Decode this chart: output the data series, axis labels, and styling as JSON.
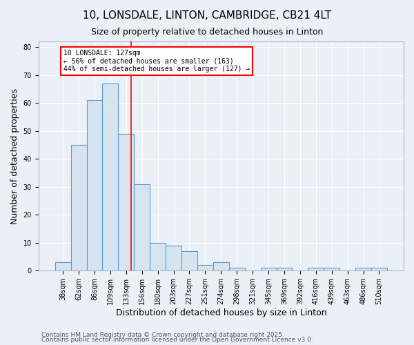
{
  "title1": "10, LONSDALE, LINTON, CAMBRIDGE, CB21 4LT",
  "title2": "Size of property relative to detached houses in Linton",
  "xlabel": "Distribution of detached houses by size in Linton",
  "ylabel": "Number of detached properties",
  "categories": [
    "38sqm",
    "62sqm",
    "86sqm",
    "109sqm",
    "133sqm",
    "156sqm",
    "180sqm",
    "203sqm",
    "227sqm",
    "251sqm",
    "274sqm",
    "298sqm",
    "321sqm",
    "345sqm",
    "369sqm",
    "392sqm",
    "416sqm",
    "439sqm",
    "463sqm",
    "486sqm",
    "510sqm"
  ],
  "values": [
    3,
    45,
    61,
    67,
    49,
    31,
    10,
    9,
    7,
    2,
    3,
    1,
    0,
    1,
    1,
    0,
    1,
    1,
    0,
    1,
    1
  ],
  "bar_color": "#d6e4f0",
  "bar_edge_color": "#5b9bd5",
  "red_line_x": 4.3,
  "annotation_text": "10 LONSDALE: 127sqm\n← 56% of detached houses are smaller (163)\n44% of semi-detached houses are larger (127) →",
  "annotation_box_color": "white",
  "annotation_box_edge_color": "red",
  "footer1": "Contains HM Land Registry data © Crown copyright and database right 2025.",
  "footer2": "Contains public sector information licensed under the Open Government Licence v3.0.",
  "ylim": [
    0,
    82
  ],
  "yticks": [
    0,
    10,
    20,
    30,
    40,
    50,
    60,
    70,
    80
  ],
  "background_color": "#eaf0f6",
  "grid_color": "#ffffff",
  "title1_fontsize": 11,
  "title2_fontsize": 9,
  "xlabel_fontsize": 9,
  "ylabel_fontsize": 9,
  "tick_fontsize": 7,
  "footer_fontsize": 6.5
}
